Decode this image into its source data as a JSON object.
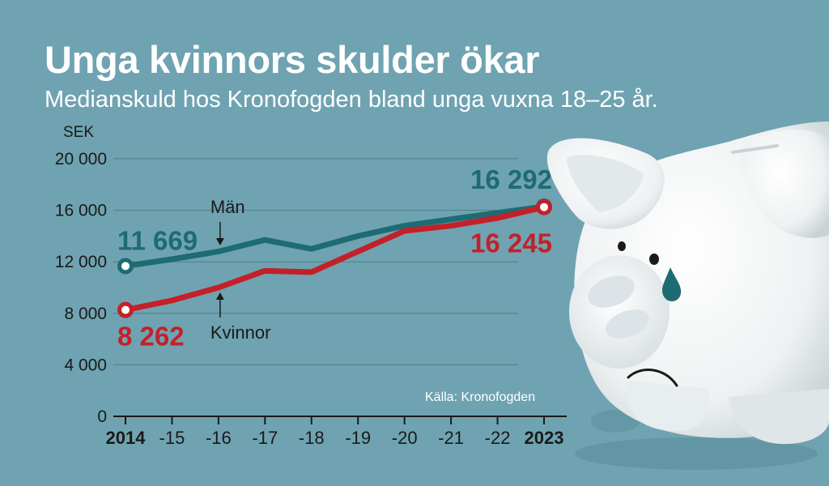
{
  "header": {
    "title": "Unga kvinnors skulder ökar",
    "subtitle": "Medianskuld hos Kronofogden bland unga vuxna 18–25 år."
  },
  "source": "Källa: Kronofogden",
  "colors": {
    "background": "#6fa3b1",
    "men": "#1e6b73",
    "women": "#c4202a",
    "grid": "#4e7f8b",
    "text": "#1a1a1a",
    "white": "#ffffff"
  },
  "illustration": {
    "icon": "sad-piggy-bank-icon"
  },
  "chart_data": {
    "type": "line",
    "title": "Unga kvinnors skulder ökar",
    "subtitle": "Medianskuld hos Kronofogden bland unga vuxna 18–25 år.",
    "ylabel": "SEK",
    "xlabel": "",
    "ylim": [
      0,
      20000
    ],
    "yticks": [
      0,
      4000,
      8000,
      12000,
      16000,
      20000
    ],
    "ytick_labels": [
      "0",
      "4 000",
      "8 000",
      "12 000",
      "16 000",
      "20 000"
    ],
    "x": [
      2014,
      2015,
      2016,
      2017,
      2018,
      2019,
      2020,
      2021,
      2022,
      2023
    ],
    "xtick_labels": [
      "2014",
      "-15",
      "-16",
      "-17",
      "-18",
      "-19",
      "-20",
      "-21",
      "-22",
      "2023"
    ],
    "grid": true,
    "series": [
      {
        "name": "Män",
        "color": "#1e6b73",
        "values": [
          11669,
          12200,
          12800,
          13700,
          13000,
          14000,
          14800,
          15300,
          15800,
          16292
        ],
        "start_label": "11 669",
        "end_label": "16 292"
      },
      {
        "name": "Kvinnor",
        "color": "#c4202a",
        "values": [
          8262,
          9000,
          10000,
          11300,
          11200,
          12800,
          14400,
          14800,
          15400,
          16245
        ],
        "start_label": "8 262",
        "end_label": "16 245"
      }
    ]
  }
}
